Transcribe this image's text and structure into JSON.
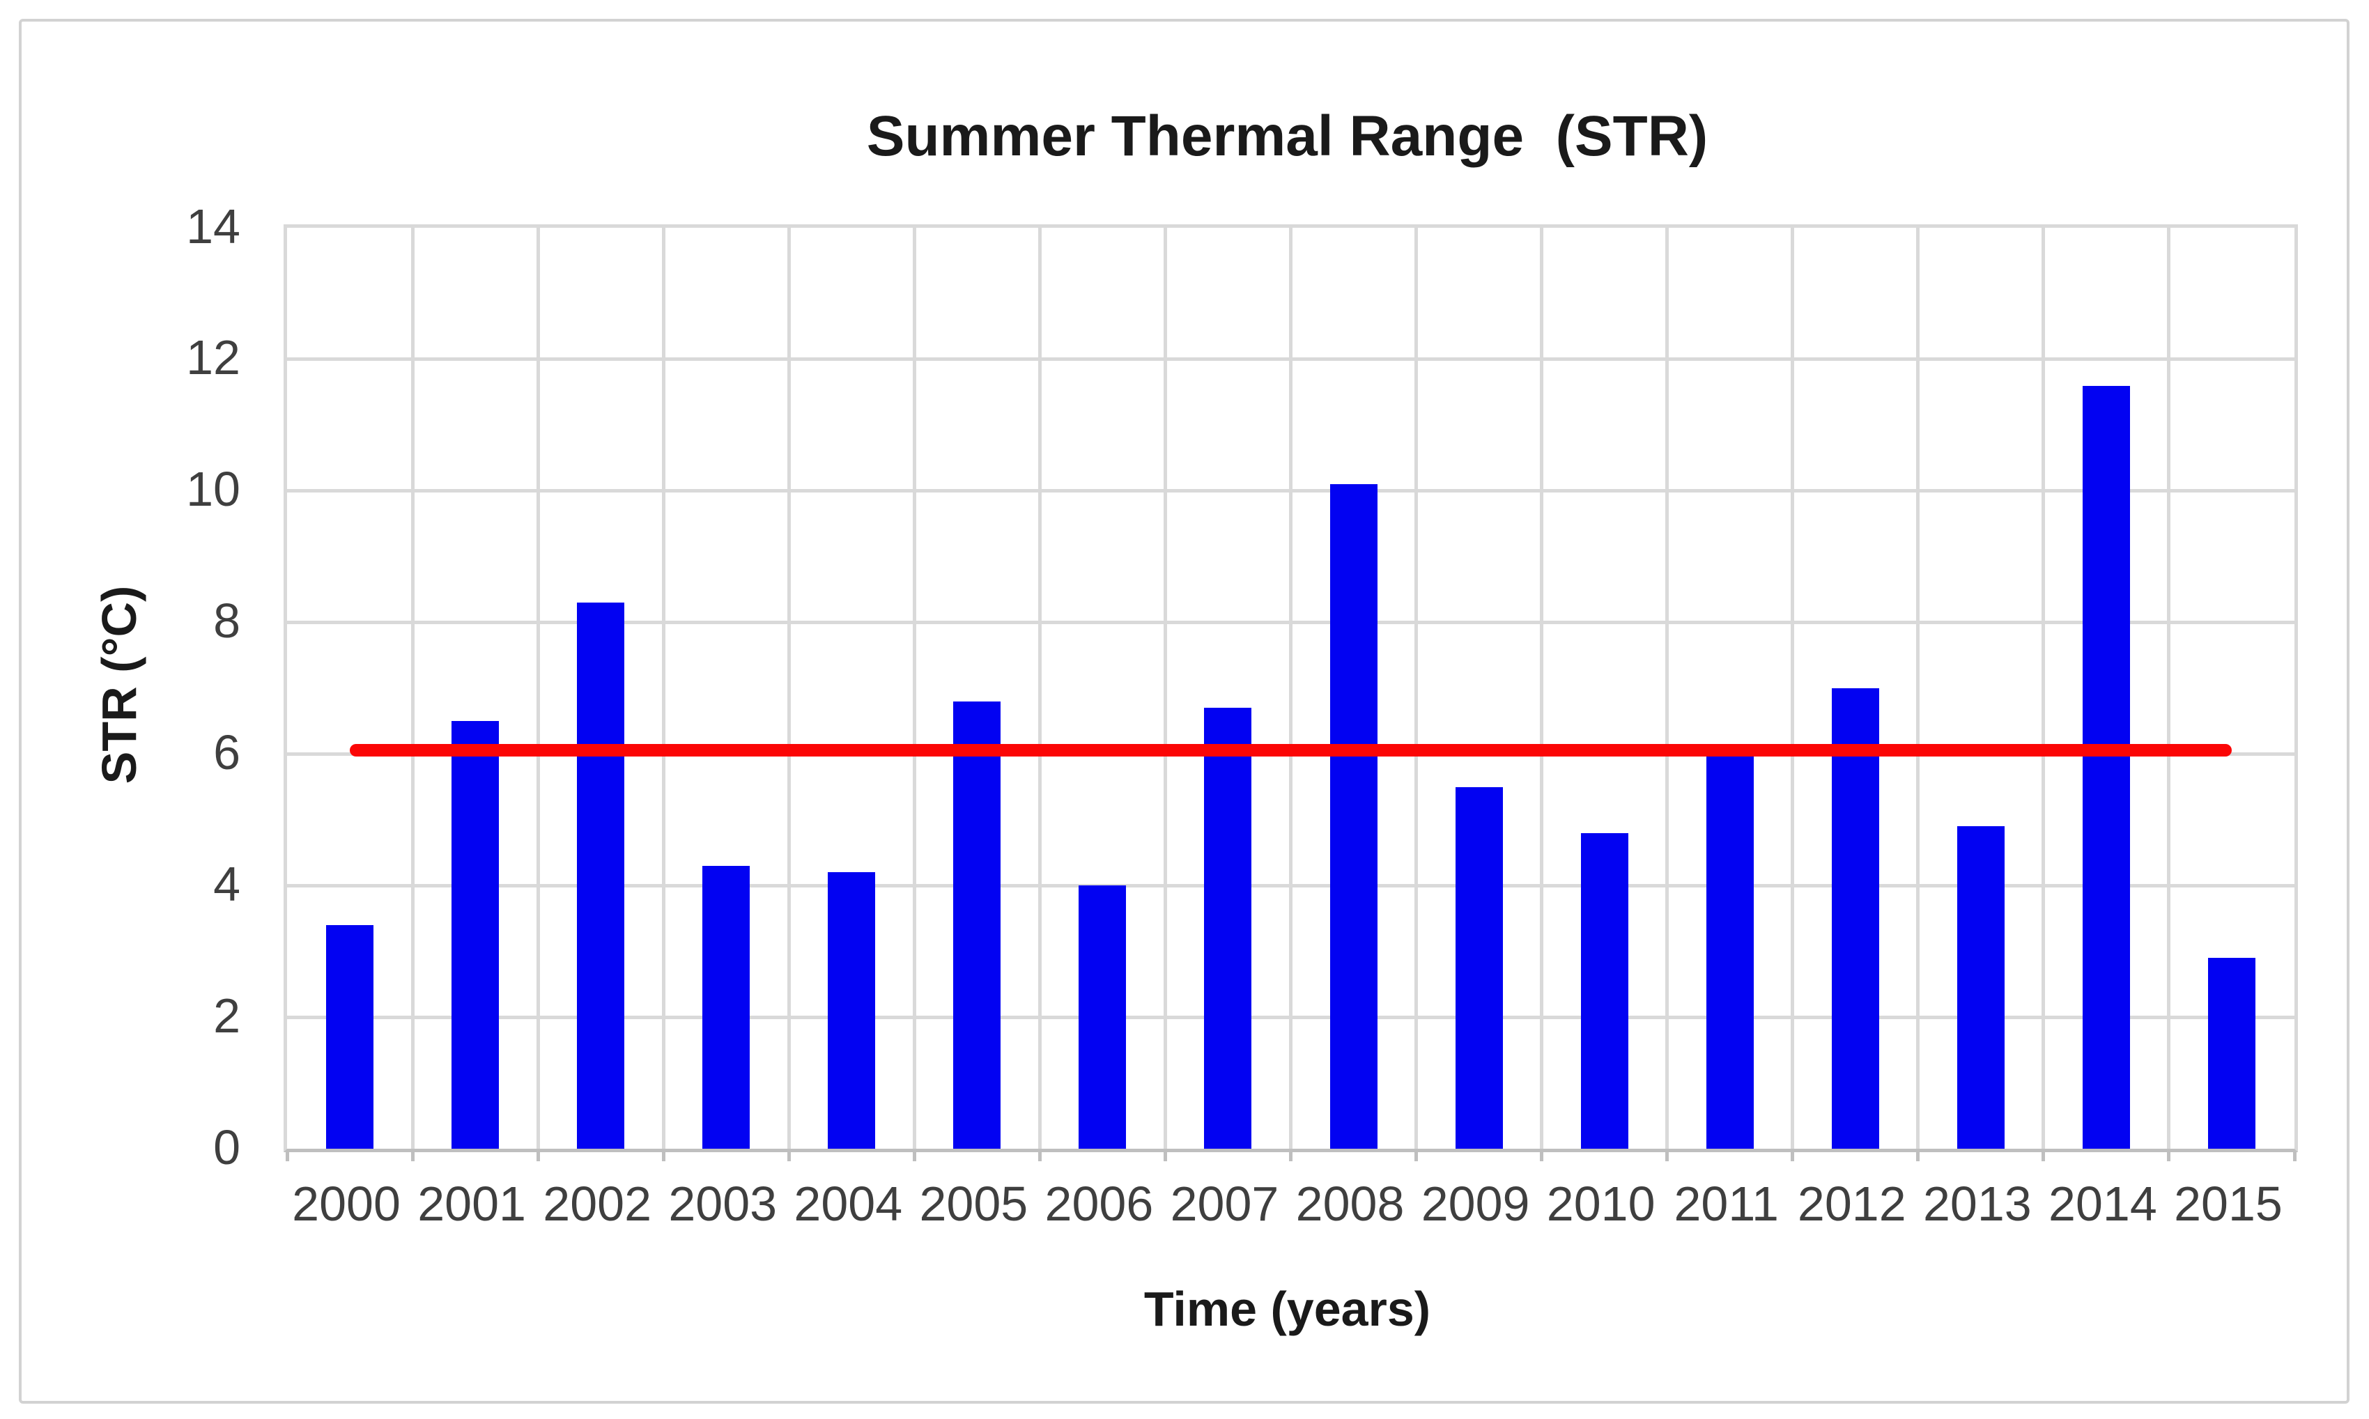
{
  "chart_data": {
    "type": "bar",
    "title": "Summer Thermal Range  (STR)",
    "xlabel": "Time (years)",
    "ylabel": "STR (°C)",
    "categories": [
      "2000",
      "2001",
      "2002",
      "2003",
      "2004",
      "2005",
      "2006",
      "2007",
      "2008",
      "2009",
      "2010",
      "2011",
      "2012",
      "2013",
      "2014",
      "2015"
    ],
    "series": [
      {
        "name": "STR",
        "type": "bar",
        "color": "#0202f2",
        "values": [
          3.4,
          6.5,
          8.3,
          4.3,
          4.2,
          6.8,
          4.0,
          6.7,
          10.1,
          5.5,
          4.8,
          6.0,
          7.0,
          4.9,
          11.6,
          2.9
        ]
      },
      {
        "name": "STR mean reference line",
        "type": "line",
        "color": "#fb0606",
        "value": 6.06
      }
    ],
    "ylim": [
      0,
      14
    ],
    "ytick_interval": 2,
    "yticks": [
      "0",
      "2",
      "4",
      "6",
      "8",
      "10",
      "12",
      "14"
    ],
    "grid": true,
    "legend": "none",
    "colors": {
      "gridline": "#d9d9d9",
      "axis_line": "#bfbfbf",
      "tick_label_text": "#3f3f3f",
      "title_text": "#1a1a1a",
      "canvas_border": "#d2d2d2",
      "background": "#ffffff"
    }
  }
}
